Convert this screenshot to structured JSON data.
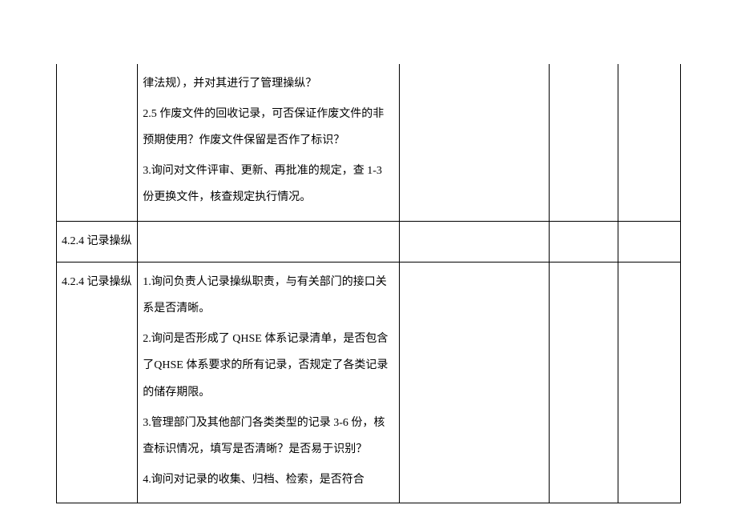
{
  "rows": [
    {
      "col1": "",
      "col2": [
        "律法规），并对其进行了管理操纵？",
        "2.5 作废文件的回收记录，可否保证作废文件的非预期使用？作废文件保留是否作了标识？",
        "3.询问对文件评审、更新、再批准的规定，查 1-3 份更换文件，核查规定执行情况。"
      ],
      "col3": "",
      "col4": "",
      "col5": ""
    },
    {
      "col1": "4.2.4 记录操纵",
      "col2": [],
      "col3": "",
      "col4": "",
      "col5": ""
    },
    {
      "col1": "4.2.4 记录操纵",
      "col2": [
        "1.询问负责人记录操纵职责，与有关部门的接口关系是否清晰。",
        "2.询问是否形成了 QHSE 体系记录清单，是否包含了QHSE 体系要求的所有记录，否规定了各类记录的储存期限。",
        "3.管理部门及其他部门各类类型的记录 3-6 份，核查标识情况，填写是否清晰？是否易于识别？",
        "4.询问对记录的收集、归档、检索，是否符合"
      ],
      "col3": "",
      "col4": "",
      "col5": ""
    }
  ]
}
